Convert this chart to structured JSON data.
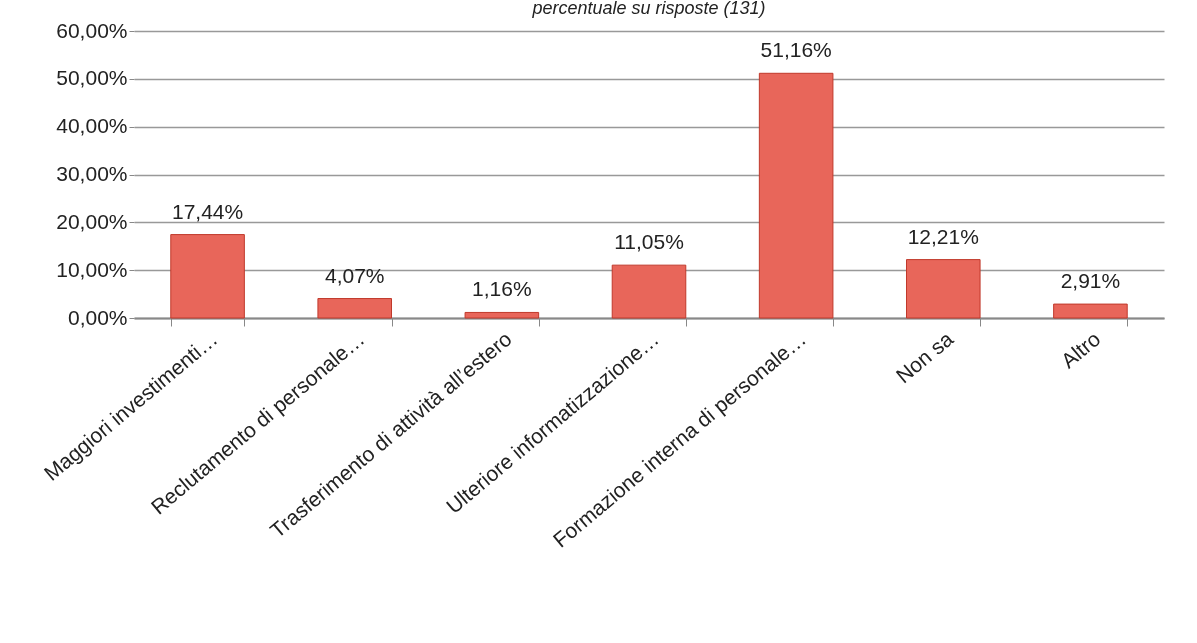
{
  "chart_data": {
    "type": "bar",
    "subtitle": "percentuale su risposte (131)",
    "categories": [
      "Maggiori investimenti…",
      "Reclutamento di personale…",
      "Trasferimento di attività all’estero",
      "Ulteriore informatizzazione…",
      "Formazione interna di personale…",
      "Non sa",
      "Altro"
    ],
    "values": [
      17.44,
      4.07,
      1.16,
      11.05,
      51.16,
      12.21,
      2.91
    ],
    "value_labels": [
      "17,44%",
      "4,07%",
      "1,16%",
      "11,05%",
      "51,16%",
      "12,21%",
      "2,91%"
    ],
    "color": "#e8665a",
    "ylim": [
      0,
      60
    ],
    "yticks": [
      {
        "value": 0,
        "label": "0,00%"
      },
      {
        "value": 10,
        "label": "10,00%"
      },
      {
        "value": 20,
        "label": "20,00%"
      },
      {
        "value": 30,
        "label": "30,00%"
      },
      {
        "value": 40,
        "label": "40,00%"
      },
      {
        "value": 50,
        "label": "50,00%"
      },
      {
        "value": 60,
        "label": "60,00%"
      }
    ],
    "grid": "y"
  }
}
